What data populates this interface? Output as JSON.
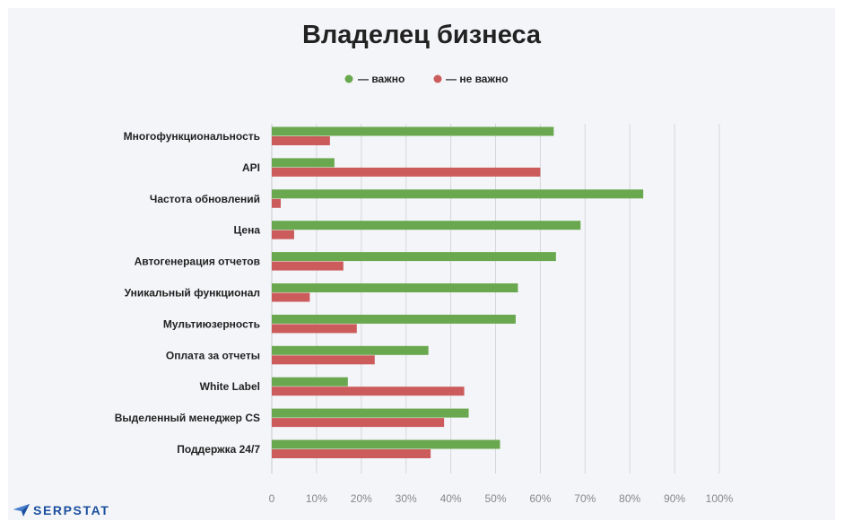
{
  "brand": {
    "name": "SERPSTAT",
    "color": "#1a4f9e"
  },
  "colors": {
    "important": "#6aa84f",
    "not_important": "#cc5c5c",
    "panel_background": "#f4f5f9"
  },
  "chart_data": {
    "type": "bar",
    "orientation": "horizontal",
    "title": "Владелец бизнеса",
    "xlabel": "",
    "ylabel": "",
    "xlim": [
      0,
      100
    ],
    "unit": "%",
    "grid": true,
    "legend_position": "top-center",
    "legend_marker": "circle",
    "x_ticks": [
      "0",
      "10%",
      "20%",
      "30%",
      "40%",
      "50%",
      "60%",
      "70%",
      "80%",
      "90%",
      "100%"
    ],
    "categories": [
      "Многофункциональность",
      "API",
      "Частота обновлений",
      "Цена",
      "Автогенерация отчетов",
      "Уникальный функционал",
      "Мультиюзерность",
      "Оплата  за отчеты",
      "White Label",
      "Выделенный менеджер CS",
      "Поддержка 24/7"
    ],
    "series": [
      {
        "name": "— важно",
        "color": "#6aa84f",
        "values": [
          63,
          14,
          83,
          69,
          63.5,
          55,
          54.5,
          35,
          17,
          44,
          51
        ]
      },
      {
        "name": "— не важно",
        "color": "#cc5c5c",
        "values": [
          13,
          60,
          2,
          5,
          16,
          8.5,
          19,
          23,
          43,
          38.5,
          35.5
        ]
      }
    ]
  }
}
